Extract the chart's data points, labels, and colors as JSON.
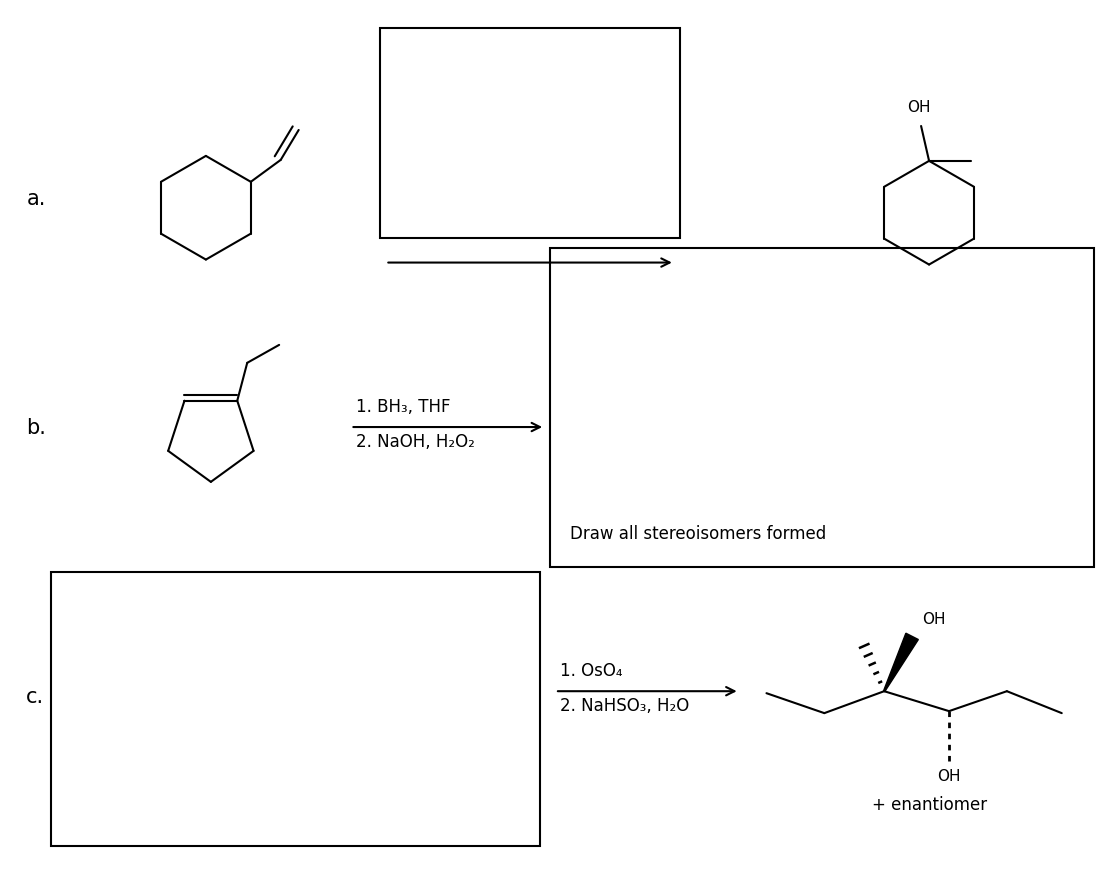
{
  "bg_color": "#ffffff",
  "line_color": "#000000",
  "font_size_label": 15,
  "font_size_text": 12,
  "font_size_small": 11,
  "label_a": "a.",
  "label_b": "b.",
  "label_c": "c.",
  "reagents_b_line1": "1. BH₃, THF",
  "reagents_b_line2": "2. NaOH, H₂O₂",
  "reagents_c_line1": "1. OsO₄",
  "reagents_c_line2": "2. NaHSO₃, H₂O",
  "draw_text": "Draw all stereoisomers formed",
  "enantiomer_text": "+ enantiomer",
  "oh_label": "OH"
}
